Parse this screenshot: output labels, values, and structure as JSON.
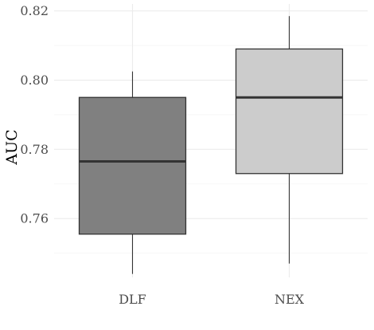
{
  "chart_data": {
    "type": "boxplot",
    "title": "",
    "xlabel": "",
    "ylabel": "AUC",
    "ylim": [
      0.743,
      0.822
    ],
    "y_ticks": [
      0.76,
      0.78,
      0.8,
      0.82
    ],
    "y_tick_labels": [
      "0.76",
      "0.78",
      "0.80",
      "0.82"
    ],
    "grid": true,
    "legend": "none",
    "categories": [
      "DLF",
      "NEX"
    ],
    "boxes": [
      {
        "category": "DLF",
        "whisker_low": 0.744,
        "q1": 0.7555,
        "median": 0.7765,
        "q3": 0.795,
        "whisker_high": 0.8025,
        "fill": "#808080"
      },
      {
        "category": "NEX",
        "whisker_low": 0.747,
        "q1": 0.773,
        "median": 0.795,
        "q3": 0.809,
        "whisker_high": 0.8185,
        "fill": "#cccccc"
      }
    ]
  },
  "colors": {
    "grid_major": "#ebebeb",
    "grid_minor": "#f5f5f5",
    "box_stroke": "#333333"
  }
}
